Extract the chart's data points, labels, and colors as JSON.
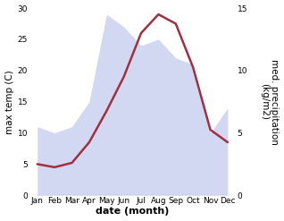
{
  "months": [
    "Jan",
    "Feb",
    "Mar",
    "Apr",
    "May",
    "Jun",
    "Jul",
    "Aug",
    "Sep",
    "Oct",
    "Nov",
    "Dec"
  ],
  "month_x": [
    0,
    1,
    2,
    3,
    4,
    5,
    6,
    7,
    8,
    9,
    10,
    11
  ],
  "max_temp": [
    5.0,
    4.5,
    5.2,
    8.5,
    13.5,
    19.0,
    26.0,
    29.0,
    27.5,
    20.5,
    10.5,
    8.5
  ],
  "precipitation": [
    5.5,
    5.0,
    5.5,
    7.5,
    14.5,
    13.5,
    12.0,
    12.5,
    11.0,
    10.5,
    5.0,
    7.0
  ],
  "temp_ylim": [
    0,
    30
  ],
  "precip_ylim": [
    0,
    15
  ],
  "fill_color": "#b0b8e8",
  "fill_alpha": 0.55,
  "line_color": "#a03040",
  "line_width": 1.8,
  "xlabel": "date (month)",
  "ylabel_left": "max temp (C)",
  "ylabel_right": "med. precipitation\n(kg/m2)",
  "bg_color": "#ffffff",
  "tick_fontsize": 6.5,
  "label_fontsize": 7.5,
  "xlabel_fontsize": 8,
  "yticks_left": [
    0,
    5,
    10,
    15,
    20,
    25,
    30
  ],
  "yticks_right": [
    0,
    5,
    10,
    15
  ]
}
